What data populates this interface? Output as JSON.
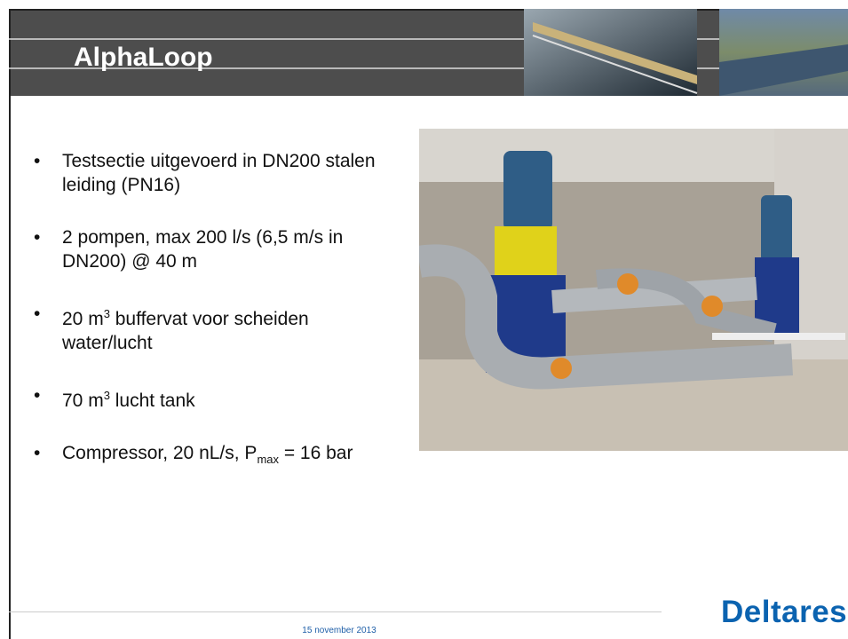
{
  "header": {
    "title": "AlphaLoop"
  },
  "bullets": [
    {
      "segments": [
        {
          "text": "Testsectie uitgevoerd in DN200 stalen leiding (PN16)"
        }
      ]
    },
    {
      "segments": [
        {
          "text": "2 pompen, max 200 l/s (6,5 m/s in DN200) @ 40 m"
        }
      ]
    },
    {
      "segments": [
        {
          "text": "20 m"
        },
        {
          "text": "3",
          "style": "sup"
        },
        {
          "text": " buffervat voor scheiden water/lucht"
        }
      ]
    },
    {
      "segments": [
        {
          "text": "70 m"
        },
        {
          "text": "3",
          "style": "sup"
        },
        {
          "text": " lucht tank"
        }
      ]
    },
    {
      "segments": [
        {
          "text": "Compressor, 20 nL/s, P"
        },
        {
          "text": "max",
          "style": "sub"
        },
        {
          "text": " = 16 bar"
        }
      ]
    }
  ],
  "footer": {
    "date": "15 november 2013",
    "logo": "Deltares"
  }
}
